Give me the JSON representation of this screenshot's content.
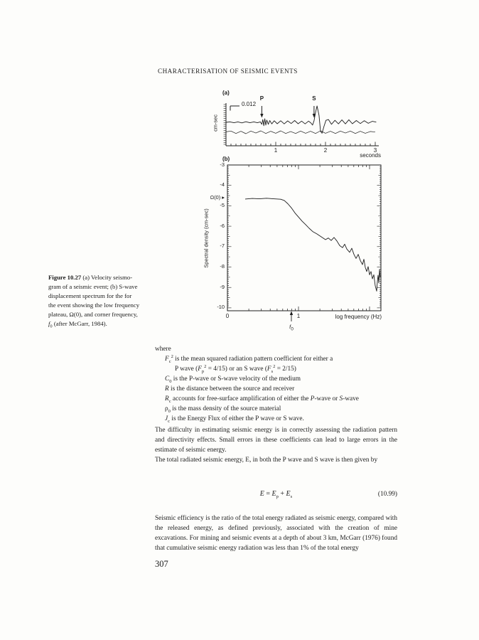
{
  "page": {
    "header": "CHARACTERISATION OF SEISMIC EVENTS",
    "page_number": "307"
  },
  "figure": {
    "caption": {
      "bold": "Figure 10.27",
      "html": "(a) Velocity seismo-<br>gram of a seismic event; (b) S-wave<br>displacement spectrum for the for<br>the event showing the low frequency<br>plateau, Ω(0), and corner frequency,<br><i>f</i><sub>0</sub> (after McGarr, 1984)."
    },
    "panel_a": {
      "label": "(a)",
      "scale_value": "0.012",
      "ylabel": "cm-sec",
      "p_marker": "P",
      "s_marker": "S",
      "xtick_labels": [
        "1",
        "2",
        "3"
      ],
      "xlabel": "seconds",
      "label_b": "(b)"
    },
    "panel_b": {
      "omega_label": "Ω(0) ▸",
      "ytick_labels": [
        "-3",
        "-4",
        "-5",
        "-6",
        "-7",
        "-8",
        "-9",
        "-10"
      ],
      "ylabel": "Spectral density (cm-sec)",
      "xtick_labels": [
        "0",
        "1"
      ],
      "f0_html": "<i>f</i><sub>0</sub>",
      "xlabel": "log frequency (Hz)"
    }
  },
  "chart_data": [
    {
      "id": "velocity-seismogram",
      "type": "line",
      "title": "(a) velocity seismogram",
      "xlabel": "seconds",
      "ylabel": "cm-sec",
      "xlim": [
        0,
        3.05
      ],
      "xticks": [
        1,
        2,
        3
      ],
      "scale_bar_value": 0.012,
      "p_arrival_s": 0.72,
      "s_arrival_s": 1.77,
      "series": [
        {
          "name": "velocity-trace",
          "points": [
            [
              0,
              0
            ],
            [
              0.08,
              0.02
            ],
            [
              0.16,
              -0.02
            ],
            [
              0.24,
              0.02
            ],
            [
              0.32,
              -0.03
            ],
            [
              0.4,
              0.03
            ],
            [
              0.48,
              -0.02
            ],
            [
              0.56,
              0.02
            ],
            [
              0.63,
              -0.02
            ],
            [
              0.69,
              0.02
            ],
            [
              0.72,
              -0.1
            ],
            [
              0.74,
              0.14
            ],
            [
              0.76,
              -0.17
            ],
            [
              0.78,
              0.18
            ],
            [
              0.8,
              -0.14
            ],
            [
              0.82,
              0.11
            ],
            [
              0.85,
              -0.1
            ],
            [
              0.88,
              0.09
            ],
            [
              0.92,
              -0.08
            ],
            [
              0.97,
              0.08
            ],
            [
              1.03,
              -0.07
            ],
            [
              1.1,
              0.08
            ],
            [
              1.17,
              -0.08
            ],
            [
              1.24,
              0.07
            ],
            [
              1.31,
              -0.06
            ],
            [
              1.38,
              0.09
            ],
            [
              1.45,
              -0.07
            ],
            [
              1.52,
              0.06
            ],
            [
              1.59,
              -0.08
            ],
            [
              1.66,
              0.06
            ],
            [
              1.71,
              -0.04
            ],
            [
              1.74,
              -0.14
            ],
            [
              1.77,
              0.08
            ],
            [
              1.8,
              0.5
            ],
            [
              1.83,
              0.82
            ],
            [
              1.87,
              0.35
            ],
            [
              1.9,
              -0.45
            ],
            [
              1.93,
              -0.55
            ],
            [
              1.97,
              -0.2
            ],
            [
              2.01,
              0.1
            ],
            [
              2.06,
              0.14
            ],
            [
              2.12,
              -0.1
            ],
            [
              2.19,
              0.1
            ],
            [
              2.26,
              -0.08
            ],
            [
              2.33,
              0.12
            ],
            [
              2.4,
              -0.08
            ],
            [
              2.47,
              0.13
            ],
            [
              2.54,
              -0.07
            ],
            [
              2.62,
              0.09
            ],
            [
              2.7,
              -0.06
            ],
            [
              2.78,
              0.08
            ],
            [
              2.86,
              -0.05
            ],
            [
              2.94,
              0.05
            ],
            [
              3.02,
              0.01
            ]
          ]
        },
        {
          "name": "noise-trace",
          "points": [
            [
              0,
              0.02
            ],
            [
              0.1,
              0.06
            ],
            [
              0.2,
              -0.06
            ],
            [
              0.3,
              0.05
            ],
            [
              0.4,
              -0.07
            ],
            [
              0.5,
              0.06
            ],
            [
              0.6,
              -0.04
            ],
            [
              0.7,
              0.07
            ],
            [
              0.8,
              -0.06
            ],
            [
              0.9,
              0.05
            ],
            [
              1,
              -0.05
            ],
            [
              1.1,
              0.07
            ],
            [
              1.2,
              -0.06
            ],
            [
              1.3,
              0.04
            ],
            [
              1.4,
              -0.06
            ],
            [
              1.5,
              0.06
            ],
            [
              1.6,
              -0.05
            ],
            [
              1.7,
              0.05
            ],
            [
              1.8,
              -0.06
            ],
            [
              1.9,
              0.07
            ],
            [
              2,
              -0.05
            ],
            [
              2.1,
              0.05
            ],
            [
              2.2,
              -0.06
            ],
            [
              2.3,
              0.06
            ],
            [
              2.4,
              -0.04
            ],
            [
              2.5,
              0.06
            ],
            [
              2.6,
              -0.06
            ],
            [
              2.7,
              0.05
            ],
            [
              2.8,
              -0.05
            ],
            [
              2.9,
              0.04
            ],
            [
              3,
              0.01
            ]
          ]
        }
      ]
    },
    {
      "id": "s-wave-displacement-spectrum",
      "type": "line",
      "title": "(b) S-wave displacement spectrum",
      "xlabel": "log frequency (Hz)",
      "ylabel": "Spectral density (cm-sec)",
      "xlim": [
        0,
        2.16
      ],
      "ylim": [
        -10.5,
        -3
      ],
      "xticks": [
        0,
        1,
        2
      ],
      "yticks": [
        -3,
        -4,
        -5,
        -6,
        -7,
        -8,
        -9,
        -10
      ],
      "low_frequency_plateau": -4.65,
      "corner_frequency_log": 0.9,
      "series": [
        {
          "name": "spectrum",
          "points": [
            [
              0.25,
              -4.67
            ],
            [
              0.35,
              -4.64
            ],
            [
              0.45,
              -4.66
            ],
            [
              0.55,
              -4.63
            ],
            [
              0.65,
              -4.66
            ],
            [
              0.75,
              -4.68
            ],
            [
              0.8,
              -4.74
            ],
            [
              0.85,
              -4.9
            ],
            [
              0.9,
              -5.1
            ],
            [
              0.95,
              -5.35
            ],
            [
              1,
              -5.55
            ],
            [
              1.05,
              -5.75
            ],
            [
              1.1,
              -5.92
            ],
            [
              1.15,
              -6.1
            ],
            [
              1.2,
              -6.26
            ],
            [
              1.26,
              -6.38
            ],
            [
              1.32,
              -6.52
            ],
            [
              1.38,
              -6.66
            ],
            [
              1.42,
              -6.58
            ],
            [
              1.46,
              -6.7
            ],
            [
              1.5,
              -6.55
            ],
            [
              1.54,
              -6.72
            ],
            [
              1.58,
              -6.95
            ],
            [
              1.62,
              -7.05
            ],
            [
              1.65,
              -6.88
            ],
            [
              1.68,
              -7.12
            ],
            [
              1.72,
              -7.28
            ],
            [
              1.75,
              -7.08
            ],
            [
              1.78,
              -7.38
            ],
            [
              1.81,
              -7.58
            ],
            [
              1.84,
              -7.38
            ],
            [
              1.87,
              -7.68
            ],
            [
              1.9,
              -7.88
            ],
            [
              1.92,
              -7.62
            ],
            [
              1.94,
              -8.02
            ],
            [
              1.96,
              -8.22
            ],
            [
              1.98,
              -7.98
            ],
            [
              2,
              -8.38
            ],
            [
              2.02,
              -8.22
            ],
            [
              2.04,
              -8.58
            ],
            [
              2.06,
              -8.38
            ],
            [
              2.08,
              -8.92
            ],
            [
              2.1,
              -9.18
            ],
            [
              2.11,
              -8.72
            ],
            [
              2.12,
              -8.4
            ],
            [
              2.13,
              -8.78
            ],
            [
              2.14,
              -8.12
            ],
            [
              2.15,
              -8.5
            ]
          ]
        }
      ]
    }
  ],
  "body": {
    "where_intro": "where",
    "definitions": [
      {
        "html": "<i>F</i><sub>c</sub><sup>2</sup> is the mean squared radiation pattern coefficient for either a"
      },
      {
        "html": "P wave (<i>F</i><sub>p</sub><sup>2</sup> = 4/15) or an S wave (<i>F</i><sub>s</sub><sup>2</sup> = 2/15)"
      },
      {
        "html": "<i>C</i><sub>0</sub> is the P-wave or S-wave velocity of the medium"
      },
      {
        "html": "<i>R</i> is the distance between the source and receiver"
      },
      {
        "html": "<i>R</i><sub>c</sub> accounts for free-surface amplification of either the <i>P</i>-wave or <i>S</i>-wave"
      },
      {
        "html": "ρ<sub>0</sub> is the mass density of the source material"
      },
      {
        "html": "<i>J</i><sub>c</sub> is the Energy Flux of either the P wave or S wave."
      }
    ],
    "paragraph1": "The difficulty in estimating seismic energy is in correctly assessing the radiation pattern and directivity effects. Small errors in these coefficients can lead to large errors in the estimate of seismic energy.",
    "paragraph2_line1": "The total radiated seismic energy, E, in both the P wave and S wave is then given",
    "paragraph2_line2": "by",
    "equation": {
      "html": "<i>E</i> = <i>E</i><sub>p</sub> + <i>E</i><sub>s</sub>",
      "number": "(10.99)"
    },
    "closing": "Seismic efficiency is the ratio of the total energy radiated as seismic energy, compared with the released energy, as defined previously, associated with the creation of mine excavations. For mining and seismic events at a depth of about 3 km, McGarr (1976) found that cumulative seismic energy radiation was less than 1% of the total energy"
  }
}
